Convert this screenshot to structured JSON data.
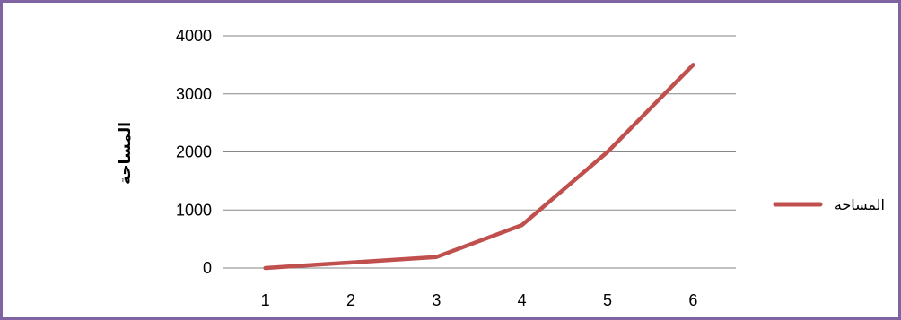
{
  "chart_data": {
    "type": "line",
    "x": [
      1,
      2,
      3,
      4,
      5,
      6
    ],
    "categories": [
      "1",
      "2",
      "3",
      "4",
      "5",
      "6"
    ],
    "series": [
      {
        "name": "المساحة",
        "values": [
          0,
          95,
          190,
          740,
          2000,
          3500
        ],
        "color": "#c0504d"
      }
    ],
    "ylabel": "المساحة",
    "xlabel": "",
    "ylim": [
      0,
      4000
    ],
    "yticks": [
      "0",
      "1000",
      "2000",
      "3000",
      "4000"
    ],
    "grid": "horizontal",
    "legend_position": "right",
    "frame_color": "#8064a2",
    "grid_color": "#868686"
  }
}
